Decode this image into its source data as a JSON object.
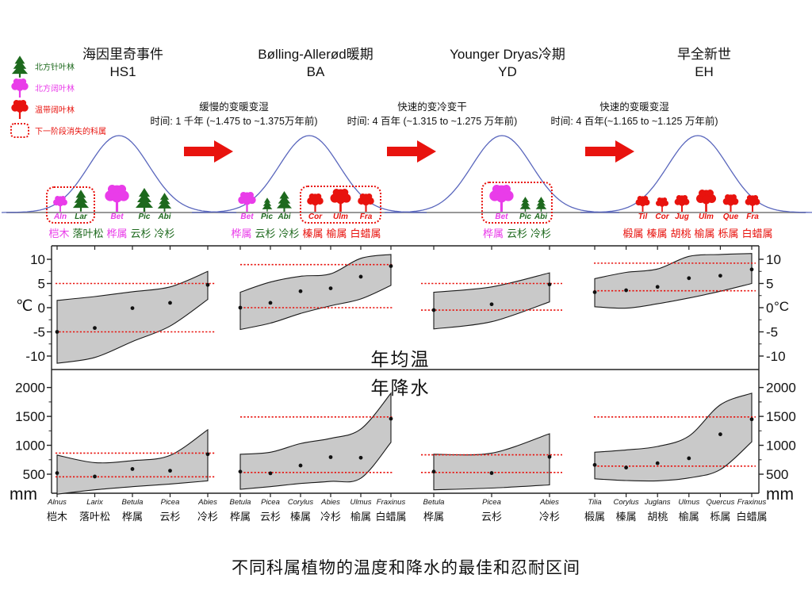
{
  "palette": {
    "magenta": "#e93ce9",
    "green": "#1d691d",
    "red": "#e8130e",
    "curve_blue": "#5a67bd",
    "band_fill": "#c9c9c9",
    "band_edge": "#1a1a1a",
    "tolerance_red": "#e8130e",
    "axis": "#222222"
  },
  "legend": {
    "items": [
      {
        "icon": "conifer-tree-icon",
        "label": "北方针叶林",
        "color": "green"
      },
      {
        "icon": "broadleaf-tree-icon",
        "label": "北方阔叶林",
        "color": "magenta"
      },
      {
        "icon": "broadleaf-tree-icon",
        "label": "温带阔叶林",
        "color": "red"
      },
      {
        "icon": "dotted-box-icon",
        "label": "下一阶段消失的科属",
        "color": "red"
      }
    ]
  },
  "periods": [
    {
      "title": "海因里奇事件",
      "abbr": "HS1"
    },
    {
      "title": "Bølling-Allerød暖期",
      "abbr": "BA"
    },
    {
      "title": "Younger Dryas冷期",
      "abbr": "YD"
    },
    {
      "title": "早全新世",
      "abbr": "EH"
    }
  ],
  "transitions": [
    {
      "line1": "缓慢的变暖变湿",
      "line2": "时间: 1 千年 (~1.475 to ~1.375万年前)"
    },
    {
      "line1": "快速的变冷变干",
      "line2": "时间: 4 百年 (~1.315 to ~1.275 万年前)"
    },
    {
      "line1": "快速的变暖变湿",
      "line2": "时间: 4 百年(~1.165 to ~1.125 万年前)"
    }
  ],
  "scenes": [
    {
      "period": "HS1",
      "groups": [
        {
          "boxed": true,
          "trees": [
            {
              "abbr": "Aln",
              "type": "broadleaf",
              "color": "magenta",
              "h": 20
            },
            {
              "abbr": "Lar",
              "type": "conifer",
              "color": "green",
              "h": 28
            }
          ]
        },
        {
          "boxed": false,
          "trees": [
            {
              "abbr": "Bet",
              "type": "broadleaf",
              "color": "magenta",
              "h": 34
            },
            {
              "abbr": "Pic",
              "type": "conifer",
              "color": "green",
              "h": 30
            },
            {
              "abbr": "Abi",
              "type": "conifer",
              "color": "green",
              "h": 24
            }
          ]
        }
      ],
      "taxa": [
        {
          "text": "桤木",
          "color": "magenta"
        },
        {
          "text": "落叶松",
          "color": "green"
        },
        {
          "text": "桦属",
          "color": "magenta"
        },
        {
          "text": "云杉",
          "color": "green"
        },
        {
          "text": "冷杉",
          "color": "green"
        }
      ]
    },
    {
      "period": "BA",
      "groups": [
        {
          "boxed": false,
          "trees": [
            {
              "abbr": "Bet",
              "type": "broadleaf",
              "color": "magenta",
              "h": 25
            },
            {
              "abbr": "Pic",
              "type": "conifer",
              "color": "green",
              "h": 18
            },
            {
              "abbr": "Abi",
              "type": "conifer",
              "color": "green",
              "h": 26
            }
          ]
        },
        {
          "boxed": true,
          "trees": [
            {
              "abbr": "Cor",
              "type": "broadleaf",
              "color": "red",
              "h": 23
            },
            {
              "abbr": "Ulm",
              "type": "broadleaf",
              "color": "red",
              "h": 29
            },
            {
              "abbr": "Fra",
              "type": "broadleaf",
              "color": "red",
              "h": 23
            }
          ]
        }
      ],
      "taxa": [
        {
          "text": "桦属",
          "color": "magenta"
        },
        {
          "text": "云杉",
          "color": "green"
        },
        {
          "text": "冷杉",
          "color": "green"
        },
        {
          "text": "榛属",
          "color": "red"
        },
        {
          "text": "榆属",
          "color": "red"
        },
        {
          "text": "白蜡属",
          "color": "red"
        }
      ]
    },
    {
      "period": "YD",
      "groups": [
        {
          "boxed": true,
          "trees": [
            {
              "abbr": "Bet",
              "type": "broadleaf",
              "color": "magenta",
              "h": 34
            },
            {
              "abbr": "Pic",
              "type": "conifer",
              "color": "green",
              "h": 19
            },
            {
              "abbr": "Abi",
              "type": "conifer",
              "color": "green",
              "h": 19
            }
          ]
        }
      ],
      "taxa": [
        {
          "text": "桦属",
          "color": "magenta"
        },
        {
          "text": "云杉",
          "color": "green"
        },
        {
          "text": "冷杉",
          "color": "green"
        }
      ]
    },
    {
      "period": "EH",
      "groups": [
        {
          "boxed": false,
          "trees": [
            {
              "abbr": "Til",
              "type": "broadleaf",
              "color": "red",
              "h": 20
            },
            {
              "abbr": "Cor",
              "type": "broadleaf",
              "color": "red",
              "h": 18
            },
            {
              "abbr": "Jug",
              "type": "broadleaf",
              "color": "red",
              "h": 21
            },
            {
              "abbr": "Ulm",
              "type": "broadleaf",
              "color": "red",
              "h": 28
            },
            {
              "abbr": "Que",
              "type": "broadleaf",
              "color": "red",
              "h": 22
            },
            {
              "abbr": "Fra",
              "type": "broadleaf",
              "color": "red",
              "h": 21
            }
          ]
        }
      ],
      "taxa": [
        {
          "text": "椴属",
          "color": "red"
        },
        {
          "text": "榛属",
          "color": "red"
        },
        {
          "text": "胡桃",
          "color": "red"
        },
        {
          "text": "榆属",
          "color": "red"
        },
        {
          "text": "栎属",
          "color": "red"
        },
        {
          "text": "白蜡属",
          "color": "red"
        }
      ]
    }
  ],
  "taxa_axis": {
    "groups": [
      {
        "period": "HS1",
        "labels": [
          [
            "Alnus",
            "桤木"
          ],
          [
            "Larix",
            "落叶松"
          ],
          [
            "Betula",
            "桦属"
          ],
          [
            "Picea",
            "云杉"
          ],
          [
            "Abies",
            "冷杉"
          ]
        ]
      },
      {
        "period": "BA",
        "labels": [
          [
            "Betula",
            "桦属"
          ],
          [
            "Picea",
            "云杉"
          ],
          [
            "Corylus",
            "榛属"
          ],
          [
            "Abies",
            "冷杉"
          ],
          [
            "Ulmus",
            "榆属"
          ],
          [
            "Fraxinus",
            "白蜡属"
          ]
        ]
      },
      {
        "period": "YD",
        "labels": [
          [
            "Betula",
            "桦属"
          ],
          [
            "Picea",
            "云杉"
          ],
          [
            "Abies",
            "冷杉"
          ]
        ]
      },
      {
        "period": "EH",
        "labels": [
          [
            "Tilia",
            "椴属"
          ],
          [
            "Corylus",
            "榛属"
          ],
          [
            "Juglans",
            "胡桃"
          ],
          [
            "Ulmus",
            "榆属"
          ],
          [
            "Quercus",
            "栎属"
          ],
          [
            "Fraxinus",
            "白蜡属"
          ]
        ]
      }
    ]
  },
  "chart_data": [
    {
      "type": "area",
      "title": "年均温",
      "ylabel_left": "℃",
      "ylabel_right": "°C",
      "yticks": [
        10,
        5,
        0,
        -5,
        -10
      ],
      "ylim": [
        -12.8,
        12.8
      ],
      "grid": false,
      "panels": [
        {
          "period": "HS1",
          "upper": [
            1.5,
            2.3,
            3.3,
            4.3,
            7.5
          ],
          "lower": [
            -11.5,
            -10.3,
            -7,
            -3.8,
            1.7
          ],
          "optimum": [
            -5,
            -4.2,
            -0.1,
            1,
            4.7
          ],
          "tolerance_lines": [
            5,
            -5
          ]
        },
        {
          "period": "BA",
          "upper": [
            3.2,
            5.3,
            6.5,
            7,
            10.2,
            11
          ],
          "lower": [
            -4.5,
            -3.2,
            -1.2,
            0.4,
            1.8,
            4.6
          ],
          "optimum": [
            0,
            1,
            3.4,
            4,
            6.4,
            8.6
          ],
          "tolerance_lines": [
            8.9,
            0
          ]
        },
        {
          "period": "YD",
          "upper": [
            3.2,
            4.3,
            7.2
          ],
          "lower": [
            -4.4,
            -2.9,
            1.2
          ],
          "optimum": [
            -0.5,
            0.7,
            4.8
          ],
          "tolerance_lines": [
            5,
            -0.5
          ]
        },
        {
          "period": "EH",
          "upper": [
            6,
            7.3,
            8,
            10.6,
            11,
            11.2
          ],
          "lower": [
            0.2,
            -0.1,
            0.8,
            2,
            3.4,
            5
          ],
          "optimum": [
            3.2,
            3.6,
            4.3,
            6.1,
            6.6,
            7.9
          ],
          "tolerance_lines": [
            9.2,
            3.5
          ]
        }
      ]
    },
    {
      "type": "area",
      "title": "年降水",
      "ylabel_left": "mm",
      "ylabel_right": "mm",
      "yticks": [
        2000,
        1500,
        1000,
        500
      ],
      "ylim": [
        130,
        2300
      ],
      "grid": false,
      "panels": [
        {
          "period": "HS1",
          "upper": [
            830,
            700,
            735,
            825,
            1270
          ],
          "lower": [
            155,
            230,
            285,
            330,
            385
          ],
          "optimum": [
            520,
            460,
            590,
            560,
            845
          ],
          "tolerance_lines": [
            865,
            455
          ]
        },
        {
          "period": "BA",
          "upper": [
            845,
            880,
            1030,
            1120,
            1280,
            1900
          ],
          "lower": [
            240,
            285,
            340,
            375,
            430,
            1050
          ],
          "optimum": [
            545,
            515,
            650,
            795,
            785,
            1460
          ],
          "tolerance_lines": [
            1490,
            530
          ]
        },
        {
          "period": "YD",
          "upper": [
            845,
            865,
            1200
          ],
          "lower": [
            230,
            260,
            315
          ],
          "optimum": [
            545,
            520,
            800
          ],
          "tolerance_lines": [
            835,
            530
          ]
        },
        {
          "period": "EH",
          "upper": [
            880,
            920,
            980,
            1160,
            1700,
            1900
          ],
          "lower": [
            420,
            390,
            385,
            435,
            580,
            1060
          ],
          "optimum": [
            660,
            615,
            690,
            775,
            1190,
            1450
          ],
          "tolerance_lines": [
            1490,
            640
          ]
        }
      ]
    }
  ],
  "caption": "不同科属植物的温度和降水的最佳和忍耐区间"
}
